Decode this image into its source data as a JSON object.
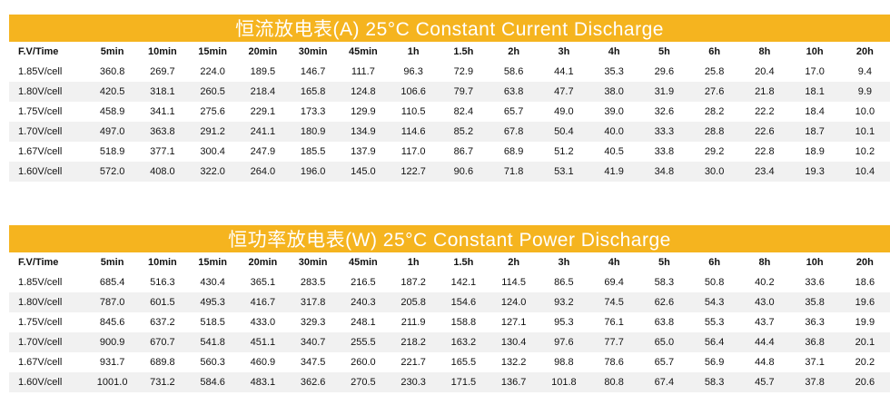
{
  "tables": [
    {
      "title": "恒流放电表(A) 25°C Constant Current Discharge",
      "headers": [
        "F.V/Time",
        "5min",
        "10min",
        "15min",
        "20min",
        "30min",
        "45min",
        "1h",
        "1.5h",
        "2h",
        "3h",
        "4h",
        "5h",
        "6h",
        "8h",
        "10h",
        "20h"
      ],
      "rows": [
        [
          "1.85V/cell",
          "360.8",
          "269.7",
          "224.0",
          "189.5",
          "146.7",
          "111.7",
          "96.3",
          "72.9",
          "58.6",
          "44.1",
          "35.3",
          "29.6",
          "25.8",
          "20.4",
          "17.0",
          "9.4"
        ],
        [
          "1.80V/cell",
          "420.5",
          "318.1",
          "260.5",
          "218.4",
          "165.8",
          "124.8",
          "106.6",
          "79.7",
          "63.8",
          "47.7",
          "38.0",
          "31.9",
          "27.6",
          "21.8",
          "18.1",
          "9.9"
        ],
        [
          "1.75V/cell",
          "458.9",
          "341.1",
          "275.6",
          "229.1",
          "173.3",
          "129.9",
          "110.5",
          "82.4",
          "65.7",
          "49.0",
          "39.0",
          "32.6",
          "28.2",
          "22.2",
          "18.4",
          "10.0"
        ],
        [
          "1.70V/cell",
          "497.0",
          "363.8",
          "291.2",
          "241.1",
          "180.9",
          "134.9",
          "114.6",
          "85.2",
          "67.8",
          "50.4",
          "40.0",
          "33.3",
          "28.8",
          "22.6",
          "18.7",
          "10.1"
        ],
        [
          "1.67V/cell",
          "518.9",
          "377.1",
          "300.4",
          "247.9",
          "185.5",
          "137.9",
          "117.0",
          "86.7",
          "68.9",
          "51.2",
          "40.5",
          "33.8",
          "29.2",
          "22.8",
          "18.9",
          "10.2"
        ],
        [
          "1.60V/cell",
          "572.0",
          "408.0",
          "322.0",
          "264.0",
          "196.0",
          "145.0",
          "122.7",
          "90.6",
          "71.8",
          "53.1",
          "41.9",
          "34.8",
          "30.0",
          "23.4",
          "19.3",
          "10.4"
        ]
      ]
    },
    {
      "title": "恒功率放电表(W) 25°C Constant Power Discharge",
      "headers": [
        "F.V/Time",
        "5min",
        "10min",
        "15min",
        "20min",
        "30min",
        "45min",
        "1h",
        "1.5h",
        "2h",
        "3h",
        "4h",
        "5h",
        "6h",
        "8h",
        "10h",
        "20h"
      ],
      "rows": [
        [
          "1.85V/cell",
          "685.4",
          "516.3",
          "430.4",
          "365.1",
          "283.5",
          "216.5",
          "187.2",
          "142.1",
          "114.5",
          "86.5",
          "69.4",
          "58.3",
          "50.8",
          "40.2",
          "33.6",
          "18.6"
        ],
        [
          "1.80V/cell",
          "787.0",
          "601.5",
          "495.3",
          "416.7",
          "317.8",
          "240.3",
          "205.8",
          "154.6",
          "124.0",
          "93.2",
          "74.5",
          "62.6",
          "54.3",
          "43.0",
          "35.8",
          "19.6"
        ],
        [
          "1.75V/cell",
          "845.6",
          "637.2",
          "518.5",
          "433.0",
          "329.3",
          "248.1",
          "211.9",
          "158.8",
          "127.1",
          "95.3",
          "76.1",
          "63.8",
          "55.3",
          "43.7",
          "36.3",
          "19.9"
        ],
        [
          "1.70V/cell",
          "900.9",
          "670.7",
          "541.8",
          "451.1",
          "340.7",
          "255.5",
          "218.2",
          "163.2",
          "130.4",
          "97.6",
          "77.7",
          "65.0",
          "56.4",
          "44.4",
          "36.8",
          "20.1"
        ],
        [
          "1.67V/cell",
          "931.7",
          "689.8",
          "560.3",
          "460.9",
          "347.5",
          "260.0",
          "221.7",
          "165.5",
          "132.2",
          "98.8",
          "78.6",
          "65.7",
          "56.9",
          "44.8",
          "37.1",
          "20.2"
        ],
        [
          "1.60V/cell",
          "1001.0",
          "731.2",
          "584.6",
          "483.1",
          "362.6",
          "270.5",
          "230.3",
          "171.5",
          "136.7",
          "101.8",
          "80.8",
          "67.4",
          "58.3",
          "45.7",
          "37.8",
          "20.6"
        ]
      ]
    }
  ],
  "colors": {
    "banner": "#f5b41f",
    "stripe": "#f1f1f1"
  }
}
